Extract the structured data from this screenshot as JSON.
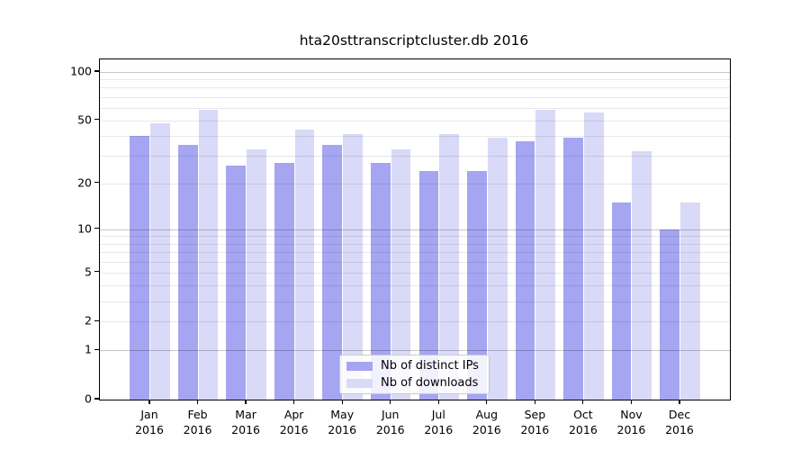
{
  "title": "hta20sttranscriptcluster.db 2016",
  "legend": {
    "items": [
      {
        "label": "Nb of distinct IPs",
        "color": "#a5a5f2"
      },
      {
        "label": "Nb of downloads",
        "color": "#d9d9f8"
      }
    ]
  },
  "chart_data": {
    "type": "bar",
    "title": "hta20sttranscriptcluster.db 2016",
    "categories": [
      "Jan",
      "Feb",
      "Mar",
      "Apr",
      "May",
      "Jun",
      "Jul",
      "Aug",
      "Sep",
      "Oct",
      "Nov",
      "Dec"
    ],
    "year_label": "2016",
    "series": [
      {
        "name": "Nb of distinct IPs",
        "color": "#a5a5f2",
        "values": [
          40,
          35,
          26,
          27,
          35,
          27,
          24,
          24,
          37,
          39,
          15,
          10
        ]
      },
      {
        "name": "Nb of downloads",
        "color": "#d9d9f8",
        "values": [
          48,
          58,
          33,
          44,
          41,
          33,
          41,
          39,
          58,
          56,
          32,
          15
        ]
      }
    ],
    "xlabel": "",
    "ylabel": "",
    "yscale": "log10(1+x)",
    "ylim": [
      0,
      120
    ],
    "ytick_values": [
      0,
      1,
      2,
      5,
      10,
      20,
      50,
      100
    ],
    "ytick_labels": [
      "0",
      "1",
      "2",
      "5",
      "10",
      "20",
      "50",
      "100"
    ],
    "minor_grid_values": [
      2,
      3,
      4,
      5,
      6,
      7,
      8,
      9,
      20,
      30,
      40,
      50,
      60,
      70,
      80,
      90
    ],
    "major_grid_values": [
      1,
      10,
      100
    ],
    "grid": "on",
    "grid_above_bars": true,
    "legend_position": "lower center"
  }
}
